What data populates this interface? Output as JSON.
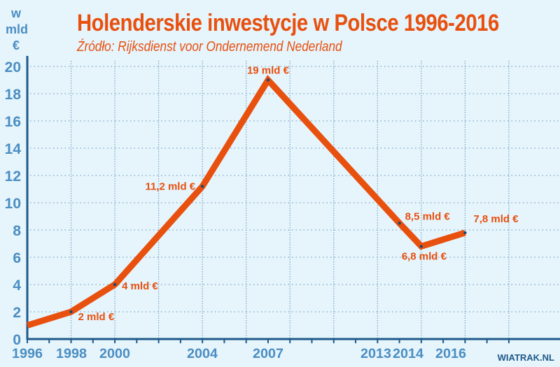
{
  "header": {
    "title": "Holenderskie inwestycje w Polsce 1996-2016",
    "subtitle": "Źródło: Rijksdienst voor Ondernemend Nederland",
    "unit_line1": "w",
    "unit_line2": "mld",
    "unit_line3": "€",
    "credit": "WIATRAK.NL"
  },
  "colors": {
    "background": "#e6f4fc",
    "line": "#e8500e",
    "axis": "#1e5a8a",
    "tick_labels": "#4a8ec2"
  },
  "chart_data": {
    "type": "line",
    "title": "Holenderskie inwestycje w Polsce 1996-2016",
    "subtitle": "Źródło: Rijksdienst voor Ondernemend Nederland",
    "xlabel": "",
    "ylabel": "w mld €",
    "ylim": [
      0,
      20
    ],
    "yticks": [
      0,
      2,
      4,
      6,
      8,
      10,
      12,
      14,
      16,
      18,
      20
    ],
    "xticks": [
      "1996",
      "1998",
      "2000",
      "2004",
      "2007",
      "2013",
      "2014",
      "2016"
    ],
    "grid": true,
    "x": [
      1996,
      1998,
      2000,
      2004,
      2007,
      2013,
      2014,
      2016
    ],
    "series": [
      {
        "name": "Holenderskie inwestycje",
        "values": [
          1,
          2,
          4,
          11.2,
          19,
          8.5,
          6.8,
          7.8
        ]
      }
    ],
    "data_labels": [
      "",
      "2 mld €",
      "4 mld €",
      "11,2 mld €",
      "19 mld €",
      "8,5 mld €",
      "6,8 mld €",
      "7,8 mld €"
    ]
  }
}
